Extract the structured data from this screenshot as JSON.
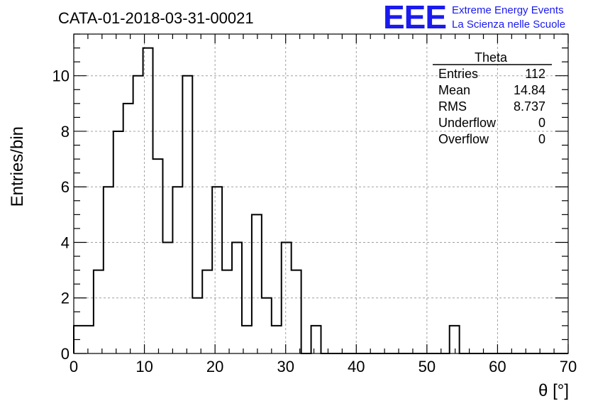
{
  "chart_data": {
    "type": "bar",
    "title": "CATA-01-2018-03-31-00021",
    "xlabel": "θ [°]",
    "ylabel": "Entries/bin",
    "xlim": [
      0,
      70
    ],
    "ylim": [
      0,
      11.5
    ],
    "grid": true,
    "x_ticks": [
      0,
      10,
      20,
      30,
      40,
      50,
      60,
      70
    ],
    "y_ticks": [
      0,
      2,
      4,
      6,
      8,
      10
    ],
    "bin_edges": [
      0,
      1.4,
      2.8,
      4.2,
      5.6,
      7.0,
      8.4,
      9.8,
      11.2,
      12.6,
      14.0,
      15.4,
      16.8,
      18.2,
      19.6,
      21.0,
      22.4,
      23.8,
      25.2,
      26.6,
      28.0,
      29.4,
      30.8,
      32.2,
      33.6,
      35.0,
      36.4,
      37.8,
      39.2,
      40.6,
      42.0,
      43.4,
      44.8,
      46.2,
      47.6,
      49.0,
      50.4,
      51.8,
      53.2,
      54.6,
      56.0,
      57.4,
      58.8,
      60.2,
      61.6,
      63.0,
      64.4,
      65.8,
      67.2,
      68.6,
      70.0
    ],
    "values": [
      1,
      1,
      3,
      6,
      8,
      9,
      10,
      11,
      7,
      4,
      6,
      10,
      2,
      3,
      6,
      3,
      4,
      1,
      5,
      2,
      1,
      4,
      3,
      0,
      1,
      0,
      0,
      0,
      0,
      0,
      0,
      0,
      0,
      0,
      0,
      0,
      0,
      0,
      1,
      0,
      0,
      0,
      0,
      0,
      0,
      0,
      0,
      0,
      0,
      0
    ],
    "stats_box": {
      "title": "Theta",
      "rows": [
        {
          "label": "Entries",
          "value": "112"
        },
        {
          "label": "Mean",
          "value": "14.84"
        },
        {
          "label": "RMS",
          "value": "8.737"
        },
        {
          "label": "Underflow",
          "value": "0"
        },
        {
          "label": "Overflow",
          "value": "0"
        }
      ]
    }
  },
  "logo": {
    "letters": "EEE",
    "line1": "Extreme Energy Events",
    "line2": "La Scienza nelle Scuole"
  },
  "colors": {
    "logo": "#1a1aee",
    "histogram": "#000000",
    "grid": "#a0a0a0"
  }
}
